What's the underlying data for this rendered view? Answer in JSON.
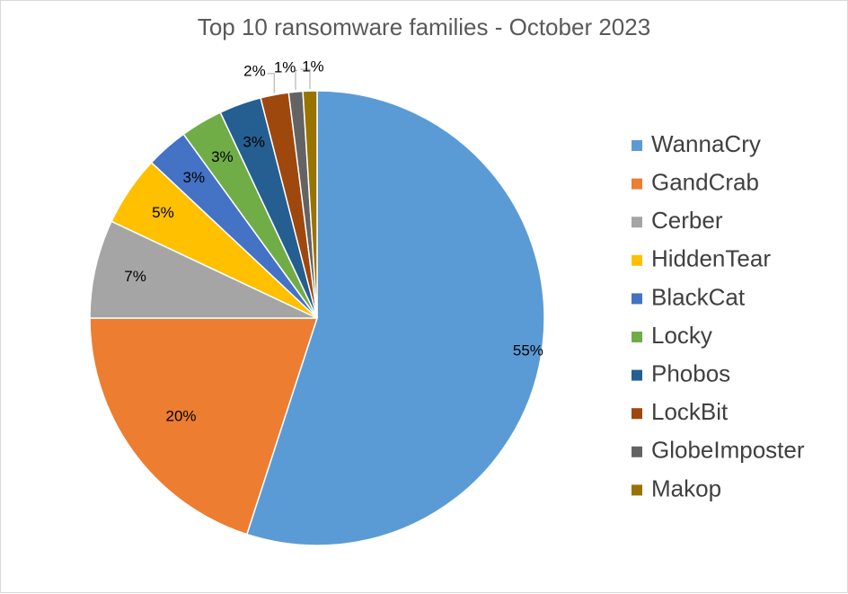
{
  "chart_data": {
    "type": "pie",
    "title": "Top 10 ransomware families - October 2023",
    "categories": [
      "WannaCry",
      "GandCrab",
      "Cerber",
      "HiddenTear",
      "BlackCat",
      "Locky",
      "Phobos",
      "LockBit",
      "GlobeImposter",
      "Makop"
    ],
    "values": [
      55,
      20,
      7,
      5,
      3,
      3,
      3,
      2,
      1,
      1
    ],
    "labels": [
      "55%",
      "20%",
      "7%",
      "5%",
      "3%",
      "3%",
      "3%",
      "2%",
      "1%",
      "1%"
    ],
    "colors": [
      "#5b9bd5",
      "#ed7d31",
      "#a5a5a5",
      "#ffc000",
      "#4472c4",
      "#70ad47",
      "#255e91",
      "#9e480e",
      "#636363",
      "#997300"
    ],
    "legend_position": "right"
  }
}
